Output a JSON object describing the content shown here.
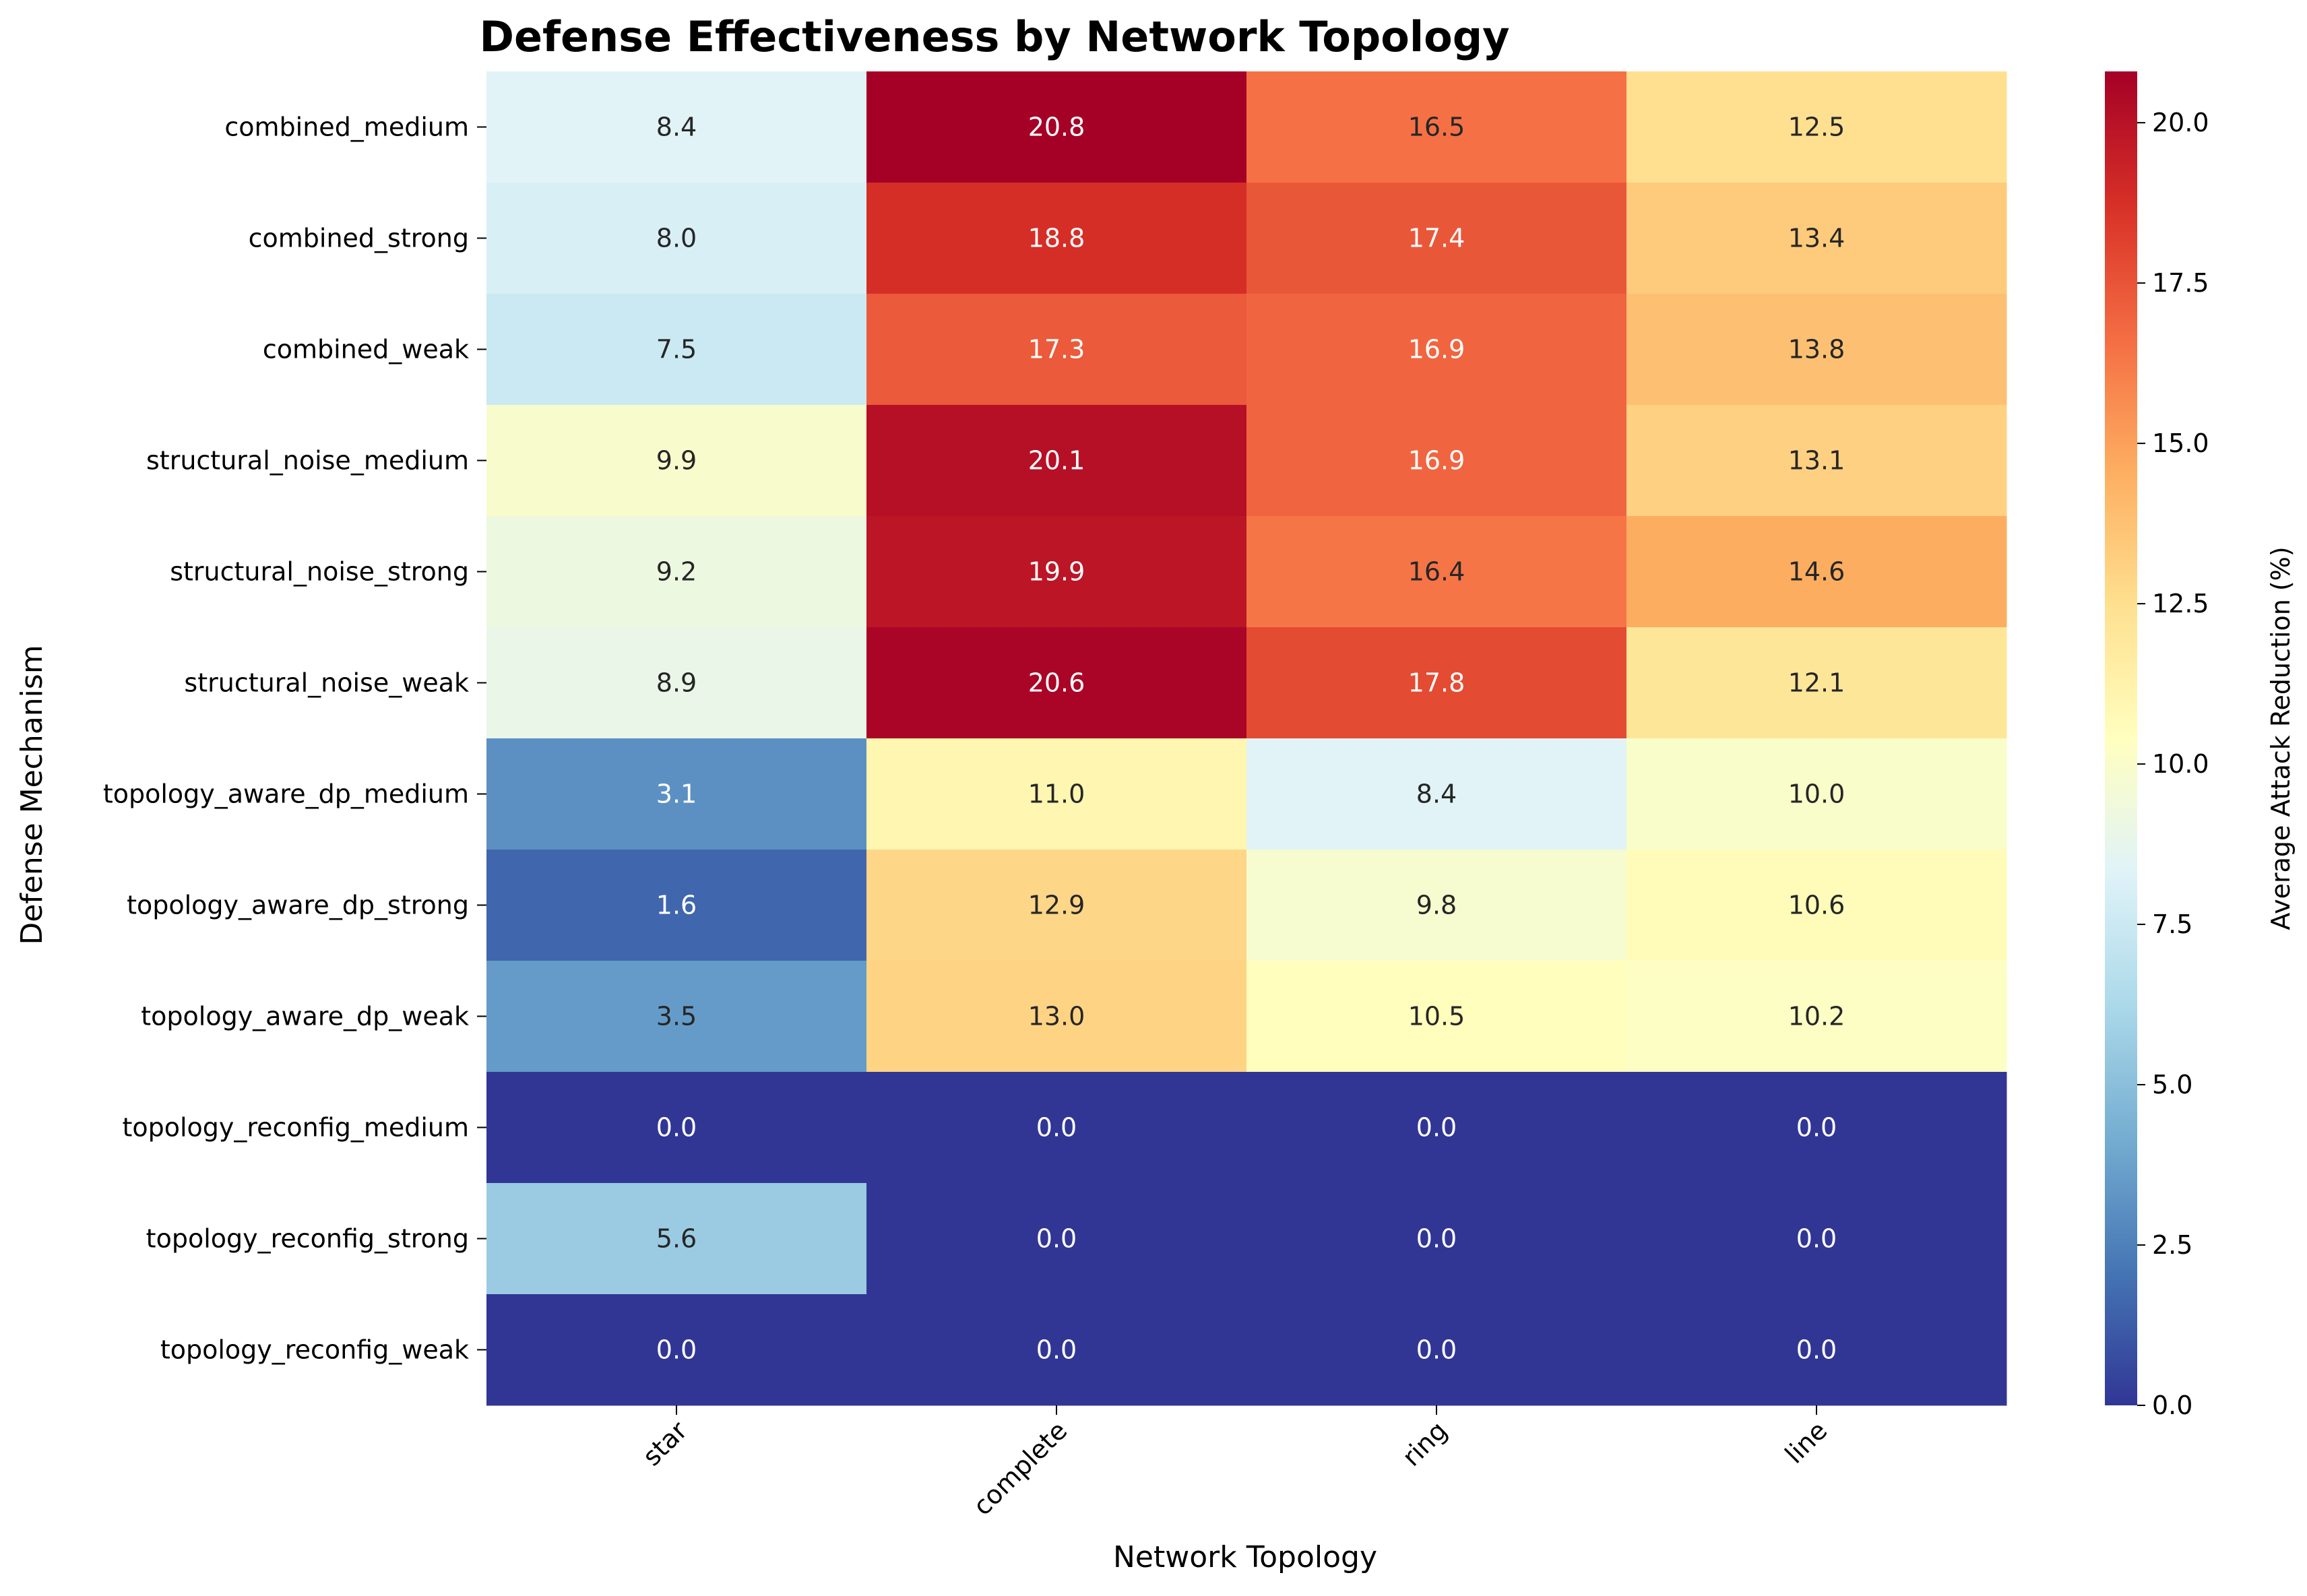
{
  "chart_data": {
    "type": "heatmap",
    "title": "Defense Effectiveness by Network Topology",
    "xlabel": "Network Topology",
    "ylabel": "Defense Mechanism",
    "x_categories": [
      "star",
      "complete",
      "ring",
      "line"
    ],
    "y_categories": [
      "combined_medium",
      "combined_strong",
      "combined_weak",
      "structural_noise_medium",
      "structural_noise_strong",
      "structural_noise_weak",
      "topology_aware_dp_medium",
      "topology_aware_dp_strong",
      "topology_aware_dp_weak",
      "topology_reconfig_medium",
      "topology_reconfig_strong",
      "topology_reconfig_weak"
    ],
    "values": [
      [
        8.4,
        20.8,
        16.5,
        12.5
      ],
      [
        8.0,
        18.8,
        17.4,
        13.4
      ],
      [
        7.5,
        17.3,
        16.9,
        13.8
      ],
      [
        9.9,
        20.1,
        16.9,
        13.1
      ],
      [
        9.2,
        19.9,
        16.4,
        14.6
      ],
      [
        8.9,
        20.6,
        17.8,
        12.1
      ],
      [
        3.1,
        11.0,
        8.4,
        10.0
      ],
      [
        1.6,
        12.9,
        9.8,
        10.6
      ],
      [
        3.5,
        13.0,
        10.5,
        10.2
      ],
      [
        0.0,
        0.0,
        0.0,
        0.0
      ],
      [
        5.6,
        0.0,
        0.0,
        0.0
      ],
      [
        0.0,
        0.0,
        0.0,
        0.0
      ]
    ],
    "colorbar": {
      "label": "Average Attack Reduction (%)",
      "min": 0.0,
      "max": 20.8,
      "ticks": [
        "0.0",
        "2.5",
        "5.0",
        "7.5",
        "10.0",
        "12.5",
        "15.0",
        "17.5",
        "20.0"
      ],
      "colormap": "RdYlBu_r"
    },
    "value_format": "one decimal"
  }
}
